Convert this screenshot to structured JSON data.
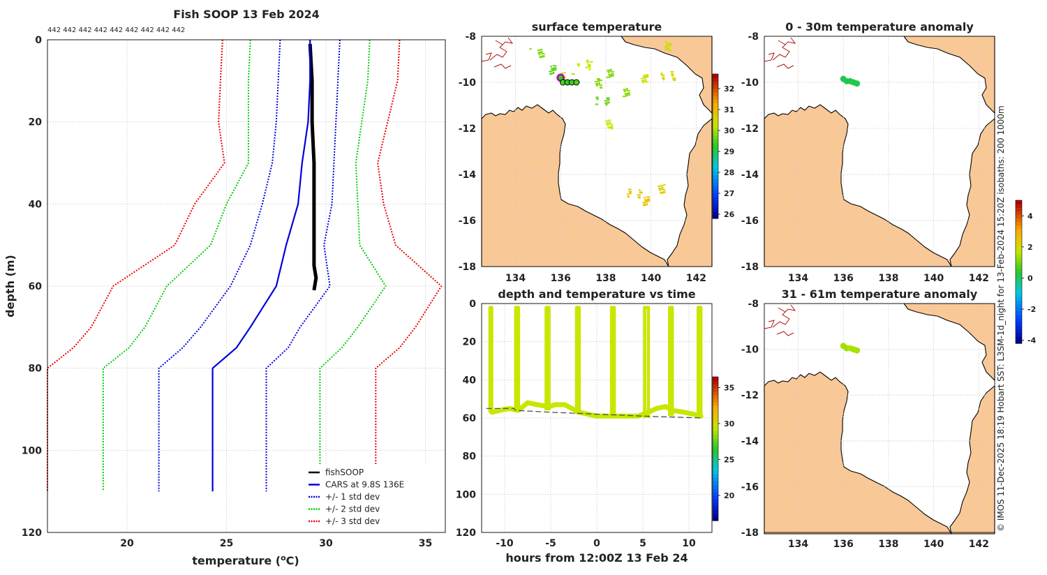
{
  "credit": "© IMOS 11-Dec-2025 18:19 Hobart SST: L3SM-1d_night for 13-Feb-2024 15:20Z isobaths: 200  1000m",
  "chart_data": [
    {
      "type": "line",
      "title": "Fish SOOP 13 Feb 2024",
      "count_labels": "442 442 442 442 442 442 442 442 442",
      "xlabel_prefix": "temperature (",
      "xlabel_super": "o",
      "xlabel_suffix": "C)",
      "ylabel": "depth (m)",
      "xlim": [
        16,
        36
      ],
      "ylim": [
        0,
        120
      ],
      "xticks": [
        20,
        25,
        30,
        35
      ],
      "yticks": [
        0,
        20,
        40,
        60,
        80,
        100,
        120
      ],
      "series": [
        {
          "name": "fishSOOP",
          "color": "#000000",
          "style": "solid",
          "width": 5,
          "temp": [
            29.2,
            29.3,
            29.3,
            29.4,
            29.4,
            29.4,
            29.4,
            29.5,
            29.4
          ],
          "depth": [
            1,
            10,
            20,
            30,
            40,
            50,
            55,
            58,
            61
          ]
        },
        {
          "name": "CARS at 9.8S 136E",
          "color": "#0000dd",
          "style": "solid",
          "width": 2.2,
          "temp": [
            29.2,
            29.2,
            29.1,
            28.8,
            28.6,
            28.0,
            27.5,
            26.2,
            25.5,
            24.3,
            24.3
          ],
          "depth": [
            0,
            10,
            20,
            30,
            40,
            50,
            60,
            70,
            75,
            80,
            110
          ]
        },
        {
          "name": "+/- 1 std dev",
          "color": "#0000dd",
          "style": "dotted",
          "width": 2,
          "temp": [
            27.7,
            27.6,
            27.5,
            27.3,
            26.8,
            26.2,
            25.2,
            23.7,
            22.8,
            21.6,
            21.6
          ],
          "depth": [
            0,
            10,
            20,
            30,
            40,
            50,
            60,
            70,
            75,
            80,
            110
          ],
          "temp2": [
            30.7,
            30.6,
            30.5,
            30.4,
            30.3,
            29.9,
            30.2,
            28.7,
            28.1,
            27.0,
            27.0
          ]
        },
        {
          "name": "+/- 2 std dev",
          "color": "#00cc00",
          "style": "dotted",
          "width": 2,
          "temp": [
            26.2,
            26.1,
            26.1,
            26.1,
            25.0,
            24.2,
            22.0,
            20.9,
            20.1,
            18.8,
            18.8
          ],
          "depth": [
            0,
            10,
            20,
            30,
            40,
            50,
            60,
            70,
            75,
            80,
            110
          ],
          "temp2": [
            32.2,
            32.1,
            31.8,
            31.5,
            31.6,
            31.7,
            33.0,
            31.6,
            30.8,
            29.7,
            29.7
          ]
        },
        {
          "name": "+/- 3 std dev",
          "color": "#ee0000",
          "style": "dotted",
          "width": 2,
          "temp": [
            24.8,
            24.7,
            24.6,
            24.9,
            23.4,
            22.4,
            19.3,
            18.2,
            17.3,
            16.0,
            16.0
          ],
          "depth": [
            0,
            10,
            20,
            30,
            40,
            50,
            60,
            70,
            75,
            80,
            110
          ],
          "temp2": [
            33.7,
            33.6,
            33.1,
            32.6,
            32.9,
            33.5,
            35.8,
            34.5,
            33.7,
            32.5,
            32.5
          ]
        }
      ]
    },
    {
      "type": "heatmap",
      "title": "surface temperature",
      "xlim": [
        132.5,
        142.7
      ],
      "ylim": [
        -18,
        -8
      ],
      "xticks": [
        134,
        136,
        138,
        140,
        142
      ],
      "yticks": [
        -8,
        -10,
        -12,
        -14,
        -16,
        -18
      ],
      "colorbar": {
        "ticks": [
          26,
          27,
          28,
          29,
          30,
          31,
          32
        ],
        "range": [
          25.8,
          32.7
        ]
      },
      "patches": [
        {
          "lon": 134.9,
          "lat": -8.7,
          "temp": 29.8
        },
        {
          "lon": 135.6,
          "lat": -9.4,
          "temp": 29.6
        },
        {
          "lon": 136.2,
          "lat": -9.7,
          "temp": 30.2
        },
        {
          "lon": 137.0,
          "lat": -9.2,
          "temp": 30.3
        },
        {
          "lon": 137.6,
          "lat": -10.0,
          "temp": 29.9
        },
        {
          "lon": 138.3,
          "lat": -9.6,
          "temp": 29.8
        },
        {
          "lon": 137.8,
          "lat": -10.8,
          "temp": 29.7
        },
        {
          "lon": 138.8,
          "lat": -10.4,
          "temp": 29.9
        },
        {
          "lon": 139.8,
          "lat": -9.8,
          "temp": 30.4
        },
        {
          "lon": 140.7,
          "lat": -9.7,
          "temp": 30.6
        },
        {
          "lon": 140.6,
          "lat": -8.4,
          "temp": 30.4
        },
        {
          "lon": 138.2,
          "lat": -11.8,
          "temp": 30.3
        },
        {
          "lon": 139.2,
          "lat": -14.8,
          "temp": 30.8
        },
        {
          "lon": 140.3,
          "lat": -14.6,
          "temp": 30.7
        },
        {
          "lon": 139.8,
          "lat": -15.1,
          "temp": 30.9
        }
      ],
      "track": [
        {
          "lon": 136.0,
          "lat": -9.8,
          "temp": 29.4,
          "highlight": true
        },
        {
          "lon": 136.1,
          "lat": -10.0,
          "temp": 29.5
        },
        {
          "lon": 136.3,
          "lat": -10.0,
          "temp": 29.3
        },
        {
          "lon": 136.5,
          "lat": -10.0,
          "temp": 29.4
        },
        {
          "lon": 136.7,
          "lat": -10.0,
          "temp": 29.5
        }
      ]
    },
    {
      "type": "scatter",
      "title": "0 - 30m temperature anomaly",
      "xlim": [
        132.5,
        142.7
      ],
      "ylim": [
        -18,
        -8
      ],
      "xticks": [
        134,
        136,
        138,
        140,
        142
      ],
      "yticks": [
        -8,
        -10,
        -12,
        -14,
        -16,
        -18
      ],
      "points": [
        {
          "lon": 136.0,
          "lat": -9.85,
          "anomaly": 0.1
        },
        {
          "lon": 136.15,
          "lat": -9.95,
          "anomaly": 0.1
        },
        {
          "lon": 136.3,
          "lat": -9.95,
          "anomaly": 0.2
        },
        {
          "lon": 136.45,
          "lat": -10.0,
          "anomaly": 0.1
        },
        {
          "lon": 136.6,
          "lat": -10.05,
          "anomaly": 0.1
        }
      ]
    },
    {
      "type": "scatter",
      "title": "31 - 61m temperature anomaly",
      "xlim": [
        132.5,
        142.7
      ],
      "ylim": [
        -18,
        -8
      ],
      "xticks": [
        134,
        136,
        138,
        140,
        142
      ],
      "yticks": [
        -8,
        -10,
        -12,
        -14,
        -16,
        -18
      ],
      "points": [
        {
          "lon": 136.0,
          "lat": -9.85,
          "anomaly": 1.5
        },
        {
          "lon": 136.15,
          "lat": -9.95,
          "anomaly": 1.4
        },
        {
          "lon": 136.3,
          "lat": -9.95,
          "anomaly": 1.6
        },
        {
          "lon": 136.45,
          "lat": -10.0,
          "anomaly": 1.5
        },
        {
          "lon": 136.6,
          "lat": -10.05,
          "anomaly": 1.5
        }
      ],
      "colorbar": {
        "ticks": [
          -4,
          -2,
          0,
          2,
          4
        ],
        "range": [
          -4.2,
          5.0
        ]
      }
    },
    {
      "type": "scatter",
      "title": "depth and temperature vs time",
      "xlabel": "hours from 12:00Z 13 Feb 24",
      "xlim": [
        -12.5,
        12.5
      ],
      "ylim": [
        0,
        120
      ],
      "xticks": [
        -10,
        -5,
        0,
        5,
        10
      ],
      "yticks": [
        0,
        20,
        40,
        60,
        80,
        100,
        120
      ],
      "colorbar": {
        "ticks": [
          20,
          25,
          30,
          35
        ],
        "range": [
          16.5,
          36.5
        ]
      },
      "casts": [
        {
          "t_start": -11.6,
          "t_end": -11.4,
          "bottom": 57
        },
        {
          "t_start": -8.8,
          "t_end": -8.5,
          "bottom": 57
        },
        {
          "t_start": -5.5,
          "t_end": -5.2,
          "bottom": 56
        },
        {
          "t_start": -2.2,
          "t_end": -1.9,
          "bottom": 58
        },
        {
          "t_start": 1.6,
          "t_end": 1.9,
          "bottom": 59
        },
        {
          "t_start": 5.2,
          "t_end": 5.6,
          "bottom": 60
        },
        {
          "t_start": 7.9,
          "t_end": 8.2,
          "bottom": 59
        },
        {
          "t_start": 11.0,
          "t_end": 11.3,
          "bottom": 60
        }
      ],
      "tow_depth": [
        {
          "t": -11.4,
          "d": 57
        },
        {
          "t": -10.5,
          "d": 56
        },
        {
          "t": -9.5,
          "d": 55
        },
        {
          "t": -8.5,
          "d": 56
        },
        {
          "t": -7.5,
          "d": 52
        },
        {
          "t": -6.5,
          "d": 53
        },
        {
          "t": -5.2,
          "d": 54
        },
        {
          "t": -4.5,
          "d": 53
        },
        {
          "t": -3.5,
          "d": 53
        },
        {
          "t": -1.9,
          "d": 57
        },
        {
          "t": -1.0,
          "d": 58
        },
        {
          "t": 0.0,
          "d": 59
        },
        {
          "t": 1.0,
          "d": 59
        },
        {
          "t": 1.9,
          "d": 59
        },
        {
          "t": 3.0,
          "d": 59
        },
        {
          "t": 4.5,
          "d": 59
        },
        {
          "t": 5.6,
          "d": 57
        },
        {
          "t": 6.5,
          "d": 55
        },
        {
          "t": 7.5,
          "d": 54
        },
        {
          "t": 8.2,
          "d": 56
        },
        {
          "t": 9.5,
          "d": 57
        },
        {
          "t": 10.5,
          "d": 58
        },
        {
          "t": 11.3,
          "d": 59
        }
      ],
      "bathymetry": [
        {
          "t": -12,
          "d": 55
        },
        {
          "t": -9,
          "d": 55
        },
        {
          "t": -8.8,
          "d": 56
        },
        {
          "t": -5,
          "d": 57
        },
        {
          "t": 0,
          "d": 58
        },
        {
          "t": 5,
          "d": 59
        },
        {
          "t": 11.5,
          "d": 60
        }
      ],
      "point_temp": 29.5
    }
  ]
}
